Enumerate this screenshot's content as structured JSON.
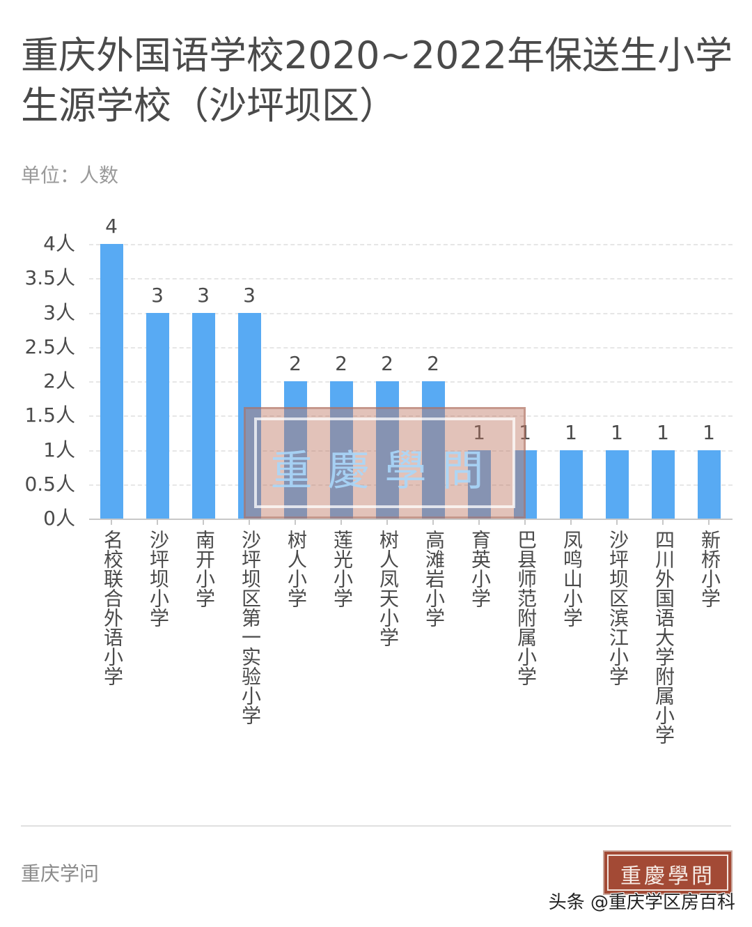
{
  "header": {
    "title": "重庆外国语学校2020~2022年保送生小学生源学校（沙坪坝区）",
    "unit": "单位：人数"
  },
  "chart_data": {
    "type": "bar",
    "title": "重庆外国语学校2020~2022年保送生小学生源学校（沙坪坝区）",
    "subtitle": "单位：人数",
    "xlabel": "",
    "ylabel": "人数",
    "ylim": [
      0,
      4
    ],
    "grid": true,
    "legend": null,
    "y_ticks": [
      "0人",
      "0.5人",
      "1人",
      "1.5人",
      "2人",
      "2.5人",
      "3人",
      "3.5人",
      "4人"
    ],
    "categories": [
      "名校联合外语小学",
      "沙坪坝小学",
      "南开小学",
      "沙坪坝区第一实验小学",
      "树人小学",
      "莲光小学",
      "树人凤天小学",
      "高滩岩小学",
      "育英小学",
      "巴县师范附属小学",
      "凤鸣山小学",
      "沙坪坝区滨江小学",
      "四川外国语大学附属小学",
      "新桥小学"
    ],
    "values": [
      4,
      3,
      3,
      3,
      2,
      2,
      2,
      2,
      1,
      1,
      1,
      1,
      1,
      1
    ],
    "colors": {
      "bar": "#58aaf3",
      "grid": "#e6e6e6",
      "axis": "#c8c8c8"
    }
  },
  "watermark": {
    "text": "重慶學問"
  },
  "footer": {
    "source": "重庆学问",
    "logo_text": "重慶學問",
    "credit": "头条 @重庆学区房百科"
  }
}
